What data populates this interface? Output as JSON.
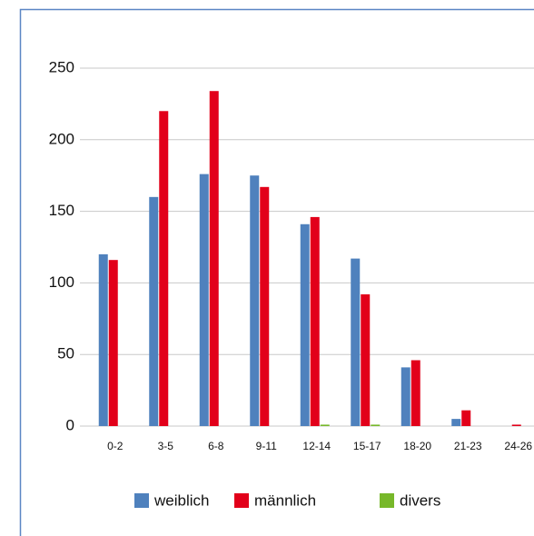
{
  "chart_data": {
    "type": "bar",
    "categories": [
      "0-2",
      "3-5",
      "6-8",
      "9-11",
      "12-14",
      "15-17",
      "18-20",
      "21-23",
      "24-26"
    ],
    "series": [
      {
        "name": "weiblich",
        "color": "#4f81bd",
        "values": [
          120,
          160,
          176,
          175,
          141,
          117,
          41,
          5,
          0
        ]
      },
      {
        "name": "männlich",
        "color": "#e2001a",
        "values": [
          116,
          220,
          234,
          167,
          146,
          92,
          46,
          11,
          1
        ]
      },
      {
        "name": "divers",
        "color": "#77b82a",
        "values": [
          0,
          0,
          0,
          0,
          1,
          1,
          0,
          0,
          0
        ]
      }
    ],
    "ylim": [
      0,
      250
    ],
    "yticks": [
      0,
      50,
      100,
      150,
      200,
      250
    ],
    "grid": true,
    "legend": "bottom"
  }
}
